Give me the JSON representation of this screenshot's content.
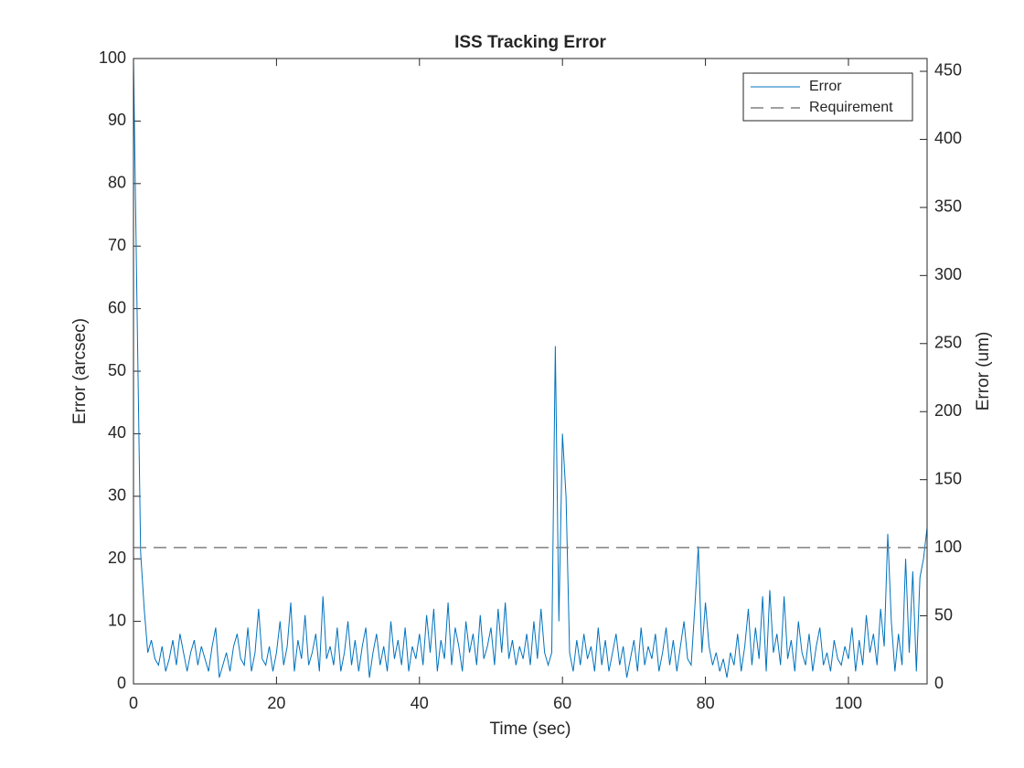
{
  "chart_data": {
    "type": "line",
    "title": "ISS Tracking Error",
    "xlabel": "Time (sec)",
    "ylabel": "Error (arcsec)",
    "y2label": "Error (um)",
    "xlim": [
      0,
      111
    ],
    "ylim": [
      0,
      100
    ],
    "y2lim": [
      0,
      459.4
    ],
    "xticks": [
      0,
      20,
      40,
      60,
      80,
      100
    ],
    "yticks": [
      0,
      10,
      20,
      30,
      40,
      50,
      60,
      70,
      80,
      90,
      100
    ],
    "y2ticks": [
      0,
      50,
      100,
      150,
      200,
      250,
      300,
      350,
      400,
      450
    ],
    "legend": "upper right",
    "series": [
      {
        "name": "Error",
        "color": "#0072bd",
        "style": "solid",
        "x": [
          0,
          0.5,
          1,
          1.5,
          2,
          2.5,
          3,
          3.5,
          4,
          4.5,
          5,
          5.5,
          6,
          6.5,
          7,
          7.5,
          8,
          8.5,
          9,
          9.5,
          10,
          10.5,
          11,
          11.5,
          12,
          12.5,
          13,
          13.5,
          14,
          14.5,
          15,
          15.5,
          16,
          16.5,
          17,
          17.5,
          18,
          18.5,
          19,
          19.5,
          20,
          20.5,
          21,
          21.5,
          22,
          22.5,
          23,
          23.5,
          24,
          24.5,
          25,
          25.5,
          26,
          26.5,
          27,
          27.5,
          28,
          28.5,
          29,
          29.5,
          30,
          30.5,
          31,
          31.5,
          32,
          32.5,
          33,
          33.5,
          34,
          34.5,
          35,
          35.5,
          36,
          36.5,
          37,
          37.5,
          38,
          38.5,
          39,
          39.5,
          40,
          40.5,
          41,
          41.5,
          42,
          42.5,
          43,
          43.5,
          44,
          44.5,
          45,
          45.5,
          46,
          46.5,
          47,
          47.5,
          48,
          48.5,
          49,
          49.5,
          50,
          50.5,
          51,
          51.5,
          52,
          52.5,
          53,
          53.5,
          54,
          54.5,
          55,
          55.5,
          56,
          56.5,
          57,
          57.5,
          58,
          58.5,
          59,
          59.5,
          60,
          60.5,
          61,
          61.5,
          62,
          62.5,
          63,
          63.5,
          64,
          64.5,
          65,
          65.5,
          66,
          66.5,
          67,
          67.5,
          68,
          68.5,
          69,
          69.5,
          70,
          70.5,
          71,
          71.5,
          72,
          72.5,
          73,
          73.5,
          74,
          74.5,
          75,
          75.5,
          76,
          76.5,
          77,
          77.5,
          78,
          78.5,
          79,
          79.5,
          80,
          80.5,
          81,
          81.5,
          82,
          82.5,
          83,
          83.5,
          84,
          84.5,
          85,
          85.5,
          86,
          86.5,
          87,
          87.5,
          88,
          88.5,
          89,
          89.5,
          90,
          90.5,
          91,
          91.5,
          92,
          92.5,
          93,
          93.5,
          94,
          94.5,
          95,
          95.5,
          96,
          96.5,
          97,
          97.5,
          98,
          98.5,
          99,
          99.5,
          100,
          100.5,
          101,
          101.5,
          102,
          102.5,
          103,
          103.5,
          104,
          104.5,
          105,
          105.5,
          106,
          106.5,
          107,
          107.5,
          108,
          108.5,
          109,
          109.5,
          110,
          110.5,
          111
        ],
        "values": [
          100,
          60,
          21,
          12,
          5,
          7,
          4,
          3,
          6,
          2,
          4,
          7,
          3,
          8,
          5,
          2,
          5,
          7,
          3,
          6,
          4,
          2,
          6,
          9,
          1,
          3,
          5,
          2,
          6,
          8,
          4,
          3,
          9,
          2,
          5,
          12,
          4,
          3,
          6,
          2,
          5,
          10,
          3,
          6,
          13,
          2,
          7,
          4,
          11,
          3,
          5,
          8,
          2,
          14,
          4,
          6,
          3,
          9,
          2,
          5,
          10,
          3,
          7,
          2,
          6,
          9,
          1,
          5,
          8,
          3,
          6,
          2,
          10,
          4,
          7,
          3,
          9,
          2,
          6,
          4,
          8,
          3,
          11,
          5,
          12,
          2,
          7,
          4,
          13,
          3,
          9,
          6,
          2,
          10,
          5,
          8,
          3,
          11,
          4,
          6,
          9,
          3,
          12,
          5,
          13,
          4,
          7,
          3,
          6,
          4,
          8,
          3,
          10,
          4,
          12,
          5,
          3,
          5,
          54,
          10,
          40,
          30,
          5,
          2,
          7,
          3,
          8,
          4,
          6,
          2,
          9,
          3,
          7,
          2,
          5,
          8,
          3,
          6,
          1,
          4,
          7,
          2,
          9,
          3,
          6,
          4,
          8,
          2,
          5,
          9,
          3,
          7,
          2,
          6,
          10,
          4,
          3,
          12,
          22,
          5,
          13,
          6,
          3,
          5,
          2,
          4,
          1,
          5,
          3,
          8,
          2,
          6,
          12,
          3,
          9,
          4,
          14,
          2,
          15,
          5,
          8,
          3,
          14,
          4,
          7,
          2,
          10,
          5,
          3,
          8,
          2,
          6,
          9,
          3,
          5,
          2,
          7,
          4,
          3,
          6,
          4,
          9,
          2,
          7,
          3,
          11,
          5,
          8,
          3,
          12,
          6,
          24,
          10,
          2,
          8,
          3,
          20,
          5,
          18,
          2,
          17,
          20,
          25
        ]
      },
      {
        "name": "Requirement",
        "color": "#808080",
        "style": "dashed",
        "x": [
          0,
          111
        ],
        "values": [
          21.8,
          21.8
        ]
      }
    ]
  }
}
